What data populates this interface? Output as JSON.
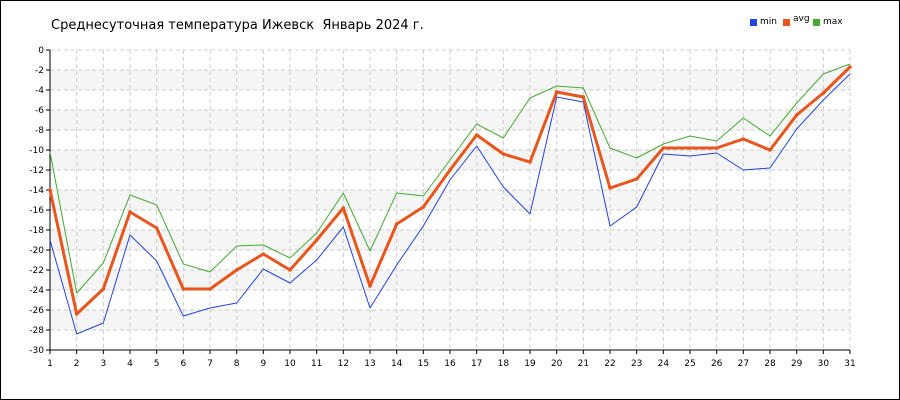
{
  "chart_data": {
    "type": "line",
    "title": "Среднесуточная температура Ижевск  Январь 2024 г.",
    "x": [
      1,
      2,
      3,
      4,
      5,
      6,
      7,
      8,
      9,
      10,
      11,
      12,
      13,
      14,
      15,
      16,
      17,
      18,
      19,
      20,
      21,
      22,
      23,
      24,
      25,
      26,
      27,
      28,
      29,
      30,
      31
    ],
    "series": [
      {
        "name": "min",
        "color": "#2244dd",
        "values": [
          -19.0,
          -28.4,
          -27.3,
          -18.5,
          -21.1,
          -26.6,
          -25.8,
          -25.3,
          -21.9,
          -23.3,
          -21.0,
          -17.7,
          -25.8,
          -21.5,
          -17.6,
          -13.0,
          -9.6,
          -13.7,
          -16.4,
          -4.7,
          -5.2,
          -17.6,
          -15.7,
          -10.4,
          -10.6,
          -10.3,
          -12.0,
          -11.8,
          -7.9,
          -5.0,
          -2.4
        ]
      },
      {
        "name": "avg",
        "color": "#e8561e",
        "values": [
          -14.0,
          -26.4,
          -23.9,
          -16.2,
          -17.8,
          -23.9,
          -23.9,
          -22.0,
          -20.4,
          -22.0,
          -19.0,
          -15.8,
          -23.6,
          -17.4,
          -15.7,
          -12.0,
          -8.5,
          -10.4,
          -11.2,
          -4.2,
          -4.7,
          -13.8,
          -12.9,
          -9.8,
          -9.8,
          -9.8,
          -8.9,
          -10.0,
          -6.5,
          -4.3,
          -1.7
        ]
      },
      {
        "name": "max",
        "color": "#44aa33",
        "values": [
          -10.2,
          -24.3,
          -21.3,
          -14.5,
          -15.5,
          -21.4,
          -22.2,
          -19.6,
          -19.5,
          -20.8,
          -18.3,
          -14.3,
          -20.1,
          -14.3,
          -14.6,
          -11.0,
          -7.4,
          -8.8,
          -4.8,
          -3.6,
          -3.8,
          -9.8,
          -10.8,
          -9.4,
          -8.6,
          -9.1,
          -6.8,
          -8.6,
          -5.3,
          -2.4,
          -1.4
        ]
      }
    ],
    "xlim": [
      1,
      31
    ],
    "ylim": [
      -30,
      0
    ],
    "yticks": [
      "0",
      "-2",
      "-4",
      "-6",
      "-8",
      "-10",
      "-12",
      "-14",
      "-16",
      "-18",
      "-20",
      "-22",
      "-24",
      "-26",
      "-28",
      "-30"
    ],
    "xticks": [
      "1",
      "2",
      "3",
      "4",
      "5",
      "6",
      "7",
      "8",
      "9",
      "10",
      "11",
      "12",
      "13",
      "14",
      "15",
      "16",
      "17",
      "18",
      "19",
      "20",
      "21",
      "22",
      "23",
      "24",
      "25",
      "26",
      "27",
      "28",
      "29",
      "30",
      "31"
    ],
    "grid": true,
    "legend_position": "top-right"
  }
}
